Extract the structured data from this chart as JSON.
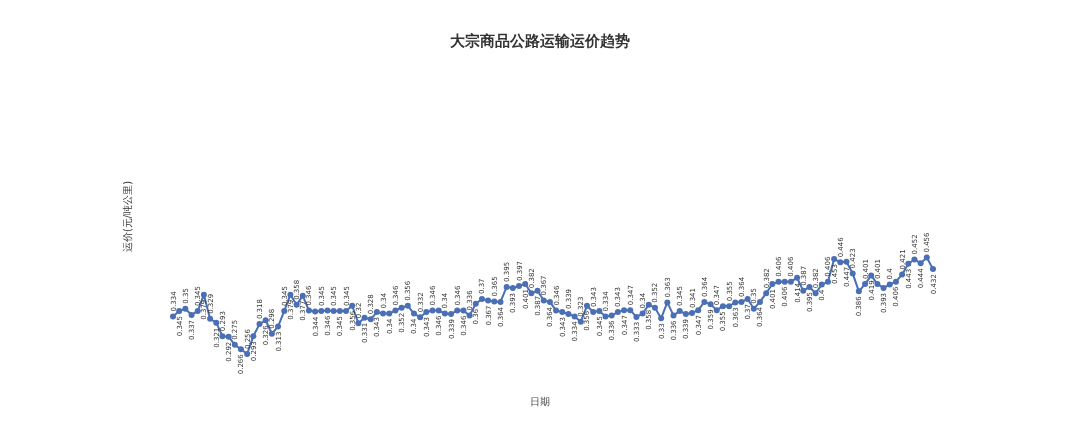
{
  "chart_data": {
    "type": "line",
    "title": "大宗商品公路运输运价趋势",
    "ylabel": "运价(元/吨公里)",
    "xlabel": "日期",
    "categories": [
      null,
      null,
      null,
      null,
      null,
      null,
      null,
      null,
      null,
      null,
      null,
      null,
      null,
      null,
      null,
      null,
      null,
      null,
      null,
      null,
      null,
      null,
      null,
      null,
      null,
      null,
      null,
      null,
      null,
      null,
      null,
      null,
      null,
      null,
      null,
      null,
      null,
      null,
      null,
      null,
      null,
      null,
      null,
      null,
      null,
      null,
      null,
      null,
      null,
      null,
      null,
      null,
      null,
      null,
      null,
      null,
      null,
      null,
      null,
      null,
      null,
      null,
      null,
      null,
      null,
      null,
      null,
      null,
      null,
      null,
      null,
      null,
      null,
      null,
      null,
      null,
      null,
      null,
      null,
      null,
      null,
      null,
      null,
      null,
      null,
      null,
      null,
      null,
      null,
      null,
      null,
      null,
      null,
      null,
      null,
      null,
      null,
      null,
      null,
      null,
      null,
      null,
      null,
      null,
      null,
      null,
      null,
      null,
      null,
      null,
      null,
      null,
      null,
      null,
      null,
      null,
      null,
      null,
      null,
      null,
      null,
      null,
      null,
      null
    ],
    "series": [
      {
        "color": "#4a6fb5",
        "values": [
          0.334,
          0.345,
          0.35,
          0.337,
          0.345,
          0.379,
          0.329,
          0.321,
          0.293,
          0.292,
          0.275,
          0.266,
          0.256,
          0.293,
          0.318,
          0.326,
          0.298,
          0.313,
          0.345,
          0.379,
          0.358,
          0.377,
          0.346,
          0.344,
          0.345,
          0.346,
          0.345,
          0.345,
          0.345,
          0.356,
          0.32,
          0.331,
          0.328,
          0.343,
          0.34,
          0.34,
          0.346,
          0.352,
          0.356,
          0.34,
          0.332,
          0.343,
          0.346,
          0.346,
          0.34,
          0.339,
          0.346,
          0.346,
          0.336,
          0.36,
          0.37,
          0.367,
          0.365,
          0.364,
          0.395,
          0.393,
          0.397,
          0.401,
          0.382,
          0.387,
          0.367,
          0.364,
          0.346,
          0.343,
          0.339,
          0.334,
          0.323,
          0.356,
          0.343,
          0.345,
          0.334,
          0.336,
          0.343,
          0.347,
          0.347,
          0.333,
          0.34,
          0.358,
          0.352,
          0.33,
          0.363,
          0.336,
          0.345,
          0.339,
          0.341,
          0.347,
          0.364,
          0.359,
          0.347,
          0.355,
          0.355,
          0.363,
          0.364,
          0.37,
          0.35,
          0.364,
          0.382,
          0.401,
          0.406,
          0.406,
          0.406,
          0.414,
          0.387,
          0.395,
          0.382,
          0.4,
          0.406,
          0.453,
          0.446,
          0.447,
          0.423,
          0.386,
          0.401,
          0.419,
          0.401,
          0.393,
          0.4,
          0.406,
          0.421,
          0.443,
          0.452,
          0.444,
          0.456,
          0.432
        ]
      }
    ],
    "marker": "circle",
    "line_style": "solid",
    "data_labels": true
  }
}
